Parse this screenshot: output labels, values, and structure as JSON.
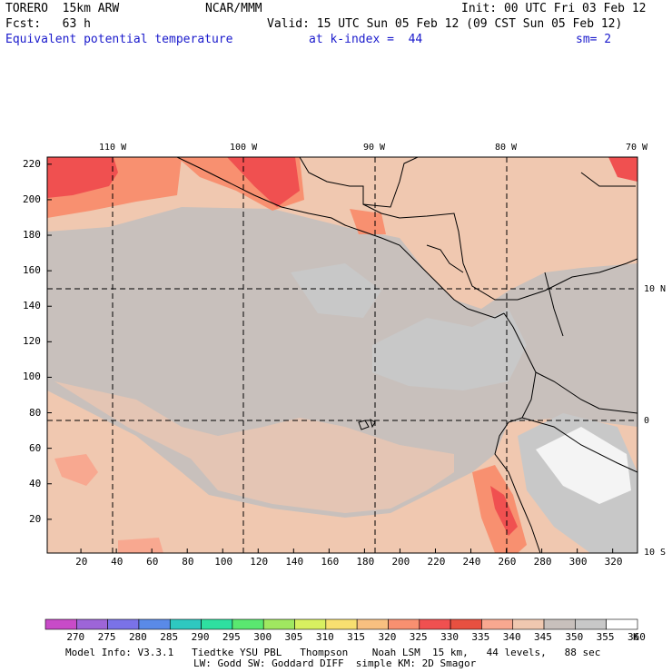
{
  "header": {
    "model": "TORERO  15km ARW",
    "org": "NCAR/MMM",
    "init": "Init: 00 UTC Fri 03 Feb 12",
    "fcst": "Fcst:   63 h",
    "valid": "Valid: 15 UTC Sun 05 Feb 12 (09 CST Sun 05 Feb 12)",
    "field": "Equivalent potential temperature",
    "level": "at k-index =  44",
    "smooth": "sm= 2"
  },
  "axes": {
    "x_ticks": [
      "20",
      "40",
      "60",
      "80",
      "100",
      "120",
      "140",
      "160",
      "180",
      "200",
      "220",
      "240",
      "260",
      "280",
      "300",
      "320"
    ],
    "y_ticks": [
      "20",
      "40",
      "60",
      "80",
      "100",
      "120",
      "140",
      "160",
      "180",
      "200",
      "220"
    ],
    "lon_labels": [
      "110 W",
      "100 W",
      "90 W",
      "80 W",
      "70 W"
    ],
    "lat_labels": [
      "10 N",
      "0",
      "10 S"
    ]
  },
  "colorbar": {
    "values": [
      "270",
      "275",
      "280",
      "285",
      "290",
      "295",
      "300",
      "305",
      "310",
      "315",
      "320",
      "325",
      "330",
      "335",
      "340",
      "345",
      "350",
      "355",
      "360"
    ],
    "unit": "K",
    "colors": [
      "#c84bc8",
      "#9d65d8",
      "#7a72e8",
      "#5a8ae8",
      "#2ec8c0",
      "#2ee0a0",
      "#5ae870",
      "#a0e860",
      "#d8f060",
      "#f8e070",
      "#f8c080",
      "#f89070",
      "#f05050",
      "#e85040",
      "#f8a890",
      "#f0c8b0",
      "#c8c0bc",
      "#c8c8c8",
      "#ffffff"
    ]
  },
  "footer": {
    "line1": "Model Info: V3.3.1   Tiedtke YSU PBL   Thompson    Noah LSM  15 km,   44 levels,   88 sec",
    "line2": "LW: Godd SW: Goddard DIFF  simple KM: 2D Smagor"
  }
}
